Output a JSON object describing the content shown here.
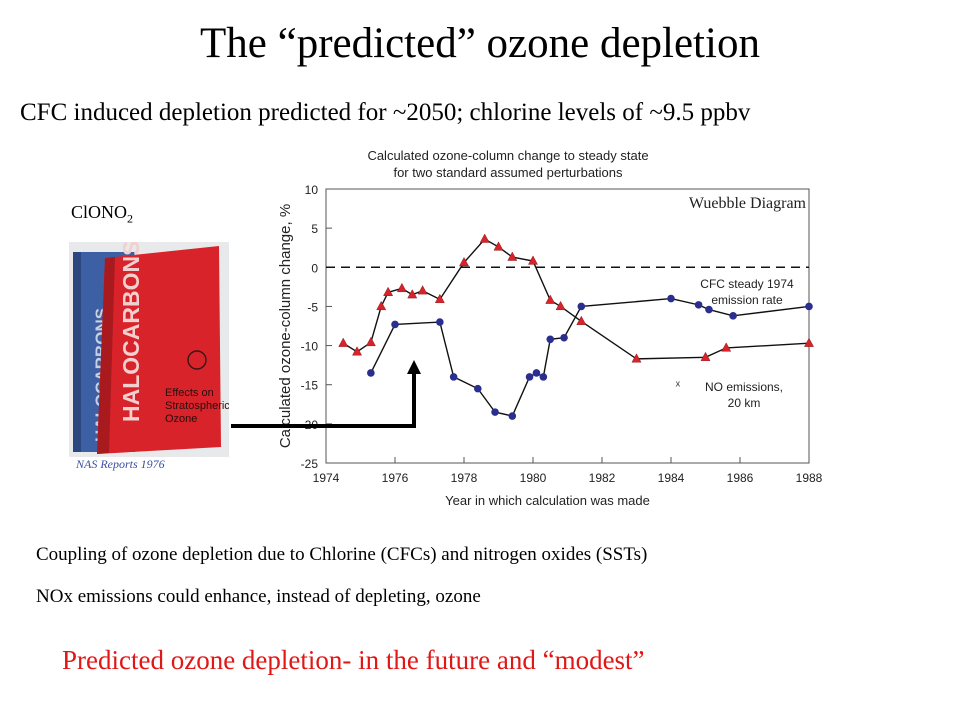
{
  "slide": {
    "title": "The “predicted” ozone depletion",
    "subtitle": "CFC induced depletion predicted for ~2050; chlorine levels of ~9.5 ppbv",
    "molecule_label": "ClONO",
    "molecule_subscript": "2",
    "book_caption": "NAS  Reports  1976",
    "book_front_title": "HALOCARBONS",
    "book_back_title": "HALOCARBONS",
    "book_front_subtitle": "Effects on\nStratospheric\nOzone",
    "bullet_1": "Coupling of ozone depletion due to Chlorine (CFCs) and nitrogen oxides (SSTs)",
    "bullet_2": "NOx emissions could enhance, instead of depleting, ozone",
    "conclusion": "Predicted ozone depletion- in the future and “modest”",
    "colors": {
      "conclusion": "#e11616",
      "caption": "#3b4fa0",
      "book_red": "#d8232a",
      "book_blue": "#3d5fa3"
    }
  },
  "chart_data": {
    "type": "line",
    "title": "Calculated ozone-column change to steady state",
    "subtitle": "for two standard assumed perturbations",
    "watermark": "Wuebble Diagram",
    "xlabel": "Year in which calculation was made",
    "ylabel": "Calculated ozone-column change, %",
    "xlim": [
      1974,
      1988
    ],
    "ylim": [
      -25,
      10
    ],
    "xticks": [
      1974,
      1976,
      1978,
      1980,
      1982,
      1984,
      1986,
      1988
    ],
    "yticks": [
      10,
      5,
      0,
      -5,
      -10,
      -15,
      -20,
      -25
    ],
    "reference_line": {
      "y": 0,
      "style": "dashed"
    },
    "series": [
      {
        "name": "CFC steady 1974 emission rate",
        "marker": "circle",
        "color": "#2a2f8f",
        "label_lines": [
          "CFC steady 1974",
          "emission rate"
        ],
        "x": [
          1975.3,
          1976.0,
          1977.3,
          1977.7,
          1978.4,
          1978.9,
          1979.4,
          1979.9,
          1980.1,
          1980.3,
          1980.5,
          1980.9,
          1981.4,
          1984.0,
          1984.8,
          1985.1,
          1985.8,
          1988.0
        ],
        "y": [
          -13.5,
          -7.3,
          -7.0,
          -14.0,
          -15.5,
          -18.5,
          -19.0,
          -14.0,
          -13.5,
          -14.0,
          -9.2,
          -9.0,
          -5.0,
          -4.0,
          -4.8,
          -5.4,
          -6.2,
          -5.0
        ]
      },
      {
        "name": "NO emissions, 20 km",
        "marker": "triangle",
        "color": "#d8232a",
        "label_lines": [
          "NO  emissions,",
          "20 km"
        ],
        "x": [
          1974.5,
          1974.9,
          1975.3,
          1975.6,
          1975.8,
          1976.2,
          1976.5,
          1976.8,
          1977.3,
          1978.0,
          1978.6,
          1979.0,
          1979.4,
          1980.0,
          1980.5,
          1980.8,
          1981.4,
          1983.0,
          1985.0,
          1985.6,
          1988.0
        ],
        "y": [
          -9.7,
          -10.8,
          -9.6,
          -5.0,
          -3.2,
          -2.7,
          -3.5,
          -3.0,
          -4.1,
          0.6,
          3.6,
          2.6,
          1.3,
          0.8,
          -4.2,
          -5.0,
          -6.9,
          -11.7,
          -11.5,
          -10.3,
          -9.7
        ]
      }
    ],
    "annotations": [
      {
        "text": "x",
        "x": 1984.2,
        "y": -14.7
      }
    ]
  }
}
